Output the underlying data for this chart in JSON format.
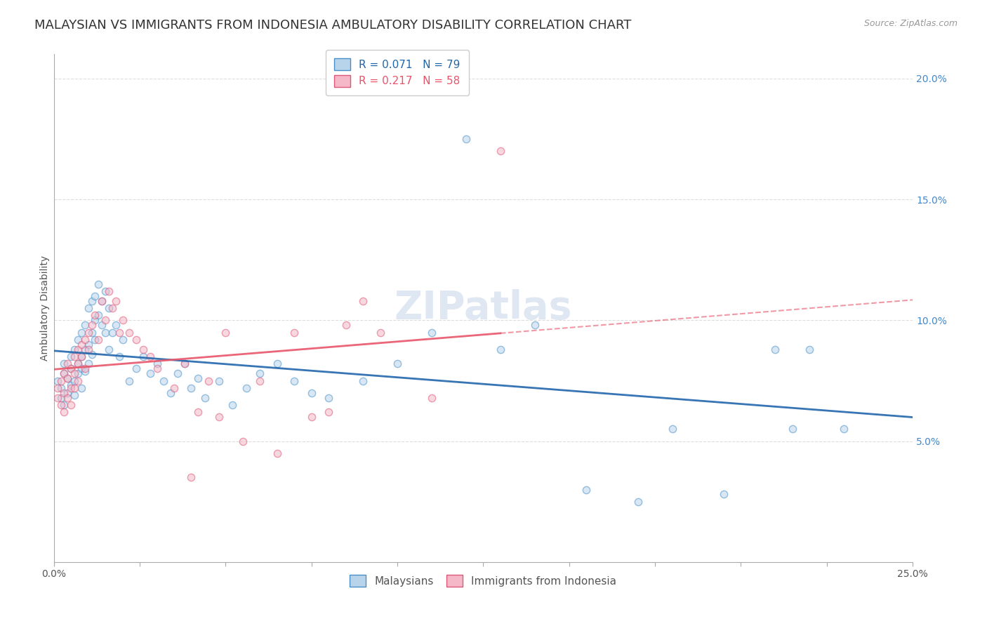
{
  "title": "MALAYSIAN VS IMMIGRANTS FROM INDONESIA AMBULATORY DISABILITY CORRELATION CHART",
  "source": "Source: ZipAtlas.com",
  "ylabel": "Ambulatory Disability",
  "xlim": [
    0.0,
    0.25
  ],
  "ylim": [
    0.0,
    0.21
  ],
  "xticks": [
    0.0,
    0.025,
    0.05,
    0.075,
    0.1,
    0.125,
    0.15,
    0.175,
    0.2,
    0.225,
    0.25
  ],
  "xticklabels_show": {
    "0.0": "0.0%",
    "0.25": "25.0%"
  },
  "yticks_left": [],
  "yticks_right": [
    0.05,
    0.1,
    0.15,
    0.2
  ],
  "yticklabels_right": [
    "5.0%",
    "10.0%",
    "15.0%",
    "20.0%"
  ],
  "legend_labels": [
    "Malaysians",
    "Immigrants from Indonesia"
  ],
  "legend_r_n": [
    {
      "R": "0.071",
      "N": "79"
    },
    {
      "R": "0.217",
      "N": "58"
    }
  ],
  "malaysian_fill": "#b8d4ea",
  "malaysian_edge": "#4a90c8",
  "indonesian_fill": "#f4b8c8",
  "indonesian_edge": "#e05878",
  "malaysian_line_color": "#2166ac",
  "indonesian_line_color": "#e8556a",
  "watermark": "ZIPatlas",
  "background_color": "#ffffff",
  "grid_color": "#dddddd",
  "title_fontsize": 13,
  "axis_label_fontsize": 10,
  "tick_fontsize": 10,
  "source_fontsize": 9,
  "watermark_fontsize": 40,
  "marker_size": 55,
  "marker_alpha": 0.55,
  "malaysians_x": [
    0.001,
    0.002,
    0.002,
    0.003,
    0.003,
    0.003,
    0.004,
    0.004,
    0.005,
    0.005,
    0.005,
    0.006,
    0.006,
    0.006,
    0.007,
    0.007,
    0.007,
    0.008,
    0.008,
    0.008,
    0.008,
    0.009,
    0.009,
    0.009,
    0.01,
    0.01,
    0.01,
    0.011,
    0.011,
    0.011,
    0.012,
    0.012,
    0.012,
    0.013,
    0.013,
    0.014,
    0.014,
    0.015,
    0.015,
    0.016,
    0.016,
    0.017,
    0.018,
    0.019,
    0.02,
    0.022,
    0.024,
    0.026,
    0.028,
    0.03,
    0.032,
    0.034,
    0.036,
    0.038,
    0.04,
    0.042,
    0.044,
    0.048,
    0.052,
    0.056,
    0.06,
    0.065,
    0.07,
    0.075,
    0.08,
    0.09,
    0.1,
    0.11,
    0.12,
    0.13,
    0.14,
    0.155,
    0.17,
    0.18,
    0.195,
    0.21,
    0.215,
    0.22,
    0.23
  ],
  "malaysians_y": [
    0.075,
    0.068,
    0.072,
    0.082,
    0.065,
    0.078,
    0.07,
    0.076,
    0.08,
    0.073,
    0.085,
    0.088,
    0.069,
    0.075,
    0.092,
    0.082,
    0.078,
    0.095,
    0.085,
    0.08,
    0.072,
    0.098,
    0.088,
    0.079,
    0.105,
    0.09,
    0.082,
    0.108,
    0.095,
    0.086,
    0.11,
    0.1,
    0.092,
    0.115,
    0.102,
    0.108,
    0.098,
    0.112,
    0.095,
    0.105,
    0.088,
    0.095,
    0.098,
    0.085,
    0.092,
    0.075,
    0.08,
    0.085,
    0.078,
    0.082,
    0.075,
    0.07,
    0.078,
    0.082,
    0.072,
    0.076,
    0.068,
    0.075,
    0.065,
    0.072,
    0.078,
    0.082,
    0.075,
    0.07,
    0.068,
    0.075,
    0.082,
    0.095,
    0.175,
    0.088,
    0.098,
    0.03,
    0.025,
    0.055,
    0.028,
    0.088,
    0.055,
    0.088,
    0.055
  ],
  "indonesians_x": [
    0.001,
    0.001,
    0.002,
    0.002,
    0.003,
    0.003,
    0.003,
    0.004,
    0.004,
    0.004,
    0.005,
    0.005,
    0.005,
    0.006,
    0.006,
    0.006,
    0.007,
    0.007,
    0.007,
    0.008,
    0.008,
    0.009,
    0.009,
    0.01,
    0.01,
    0.011,
    0.012,
    0.013,
    0.014,
    0.015,
    0.016,
    0.017,
    0.018,
    0.019,
    0.02,
    0.022,
    0.024,
    0.026,
    0.028,
    0.03,
    0.035,
    0.038,
    0.04,
    0.042,
    0.045,
    0.048,
    0.05,
    0.055,
    0.06,
    0.065,
    0.07,
    0.075,
    0.08,
    0.085,
    0.09,
    0.095,
    0.11,
    0.13
  ],
  "indonesians_y": [
    0.068,
    0.072,
    0.065,
    0.075,
    0.07,
    0.078,
    0.062,
    0.082,
    0.068,
    0.076,
    0.072,
    0.08,
    0.065,
    0.085,
    0.078,
    0.072,
    0.088,
    0.082,
    0.075,
    0.09,
    0.085,
    0.092,
    0.08,
    0.095,
    0.088,
    0.098,
    0.102,
    0.092,
    0.108,
    0.1,
    0.112,
    0.105,
    0.108,
    0.095,
    0.1,
    0.095,
    0.092,
    0.088,
    0.085,
    0.08,
    0.072,
    0.082,
    0.035,
    0.062,
    0.075,
    0.06,
    0.095,
    0.05,
    0.075,
    0.045,
    0.095,
    0.06,
    0.062,
    0.098,
    0.108,
    0.095,
    0.068,
    0.17
  ]
}
